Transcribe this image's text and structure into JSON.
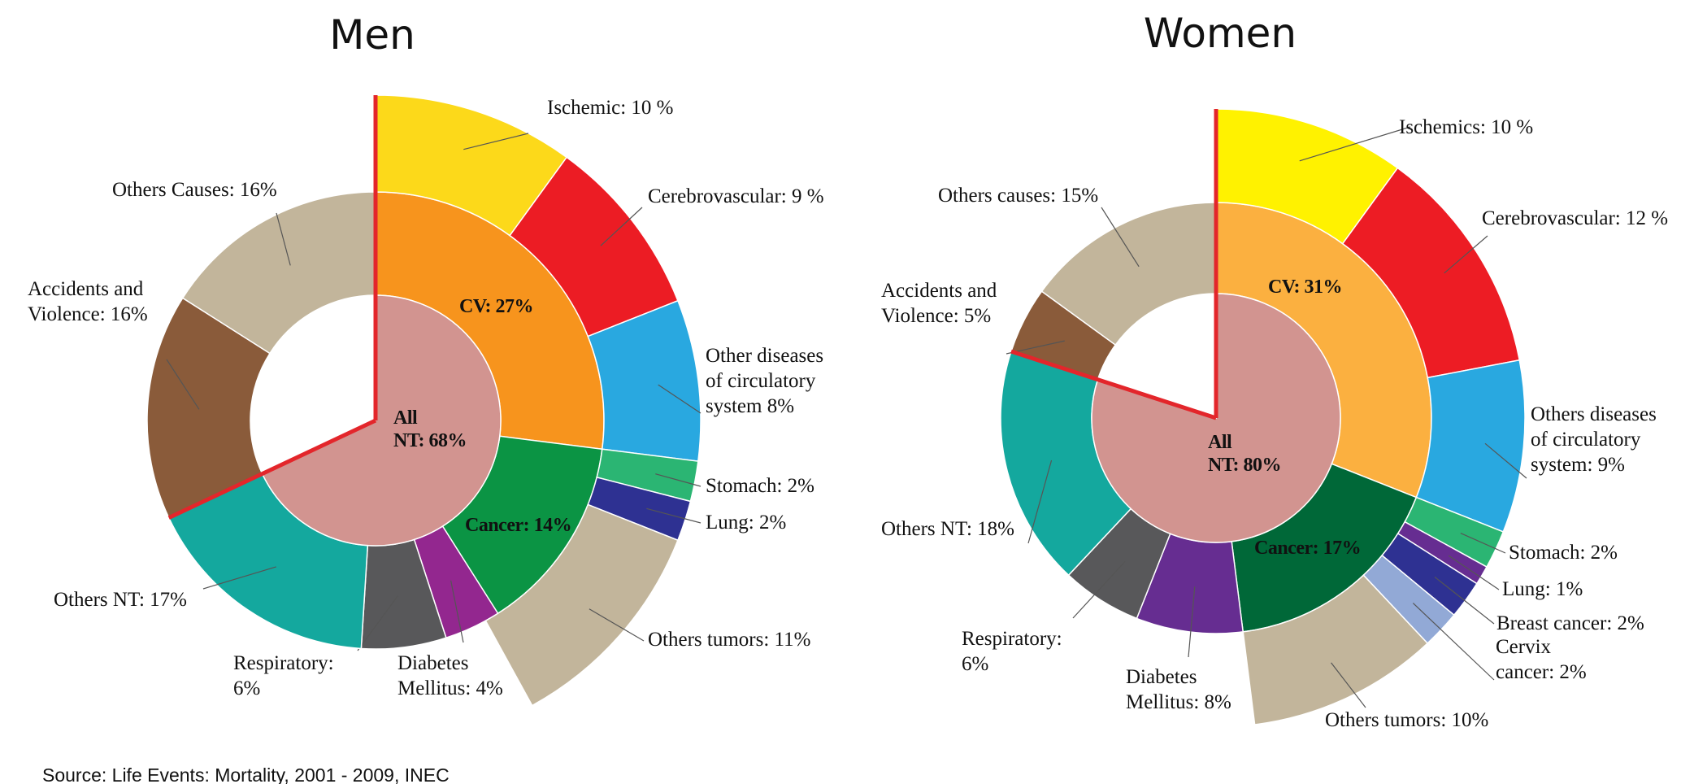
{
  "chart_data": [
    {
      "type": "sunburst",
      "title": "Men",
      "center": {
        "value": 68,
        "value_label": "All\nNT: 68%",
        "color": "#d29490"
      },
      "rings": [
        {
          "values": [
            27,
            14,
            4,
            6,
            17,
            16,
            16
          ],
          "value_labels": [
            "CV: 27%",
            "Cancer: 14%",
            "Diabetes\nMellitus: 4%",
            "Respiratory:\n6%",
            "Others NT: 17%",
            "Accidents and\nViolence: 16%",
            "Others Causes: 16%"
          ],
          "colors": [
            "#f7941d",
            "#0b9444",
            "#93278f",
            "#58585a",
            "#14a89e",
            "#8a5b3a",
            "#c2b59b"
          ]
        },
        {
          "values": [
            10,
            9,
            8,
            2,
            2,
            11
          ],
          "value_labels": [
            "Ischemic: 10 %",
            "Cerebrovascular: 9 %",
            "Other diseases\nof circulatory\nsystem  8%",
            "Stomach: 2%",
            "Lung: 2%",
            "Others tumors: 11%"
          ],
          "colors": [
            "#fcd91a",
            "#ec1c24",
            "#29a8e0",
            "#2bb573",
            "#2e3192",
            "#c2b59b"
          ]
        }
      ]
    },
    {
      "type": "sunburst",
      "title": "Women",
      "center": {
        "value": 80,
        "value_label": "All\nNT: 80%",
        "color": "#d29490"
      },
      "rings": [
        {
          "values": [
            31,
            17,
            8,
            6,
            18,
            5,
            15
          ],
          "value_labels": [
            "CV: 31%",
            "Cancer: 17%",
            "Diabetes\nMellitus: 8%",
            "Respiratory:\n6%",
            "Others NT: 18%",
            "Accidents and\nViolence: 5%",
            "Others causes: 15%"
          ],
          "colors": [
            "#fbb040",
            "#006838",
            "#662d91",
            "#58585a",
            "#14a89e",
            "#8a5b3a",
            "#c2b59b"
          ]
        },
        {
          "values": [
            10,
            12,
            9,
            2,
            1,
            2,
            2,
            10
          ],
          "value_labels": [
            "Ischemics: 10 %",
            "Cerebrovascular: 12 %",
            "Others diseases\nof circulatory\nsystem: 9%",
            "Stomach: 2%",
            "Lung: 1%",
            "Breast cancer: 2%",
            "Cervix\ncancer: 2%",
            "Others tumors: 10%"
          ],
          "colors": [
            "#fff200",
            "#ed1c24",
            "#29a8e0",
            "#2bb573",
            "#662d91",
            "#2e3192",
            "#92a9d6",
            "#c2b59b"
          ]
        }
      ]
    }
  ],
  "source": "Source: Life Events: Mortality, 2001 - 2009, INEC"
}
